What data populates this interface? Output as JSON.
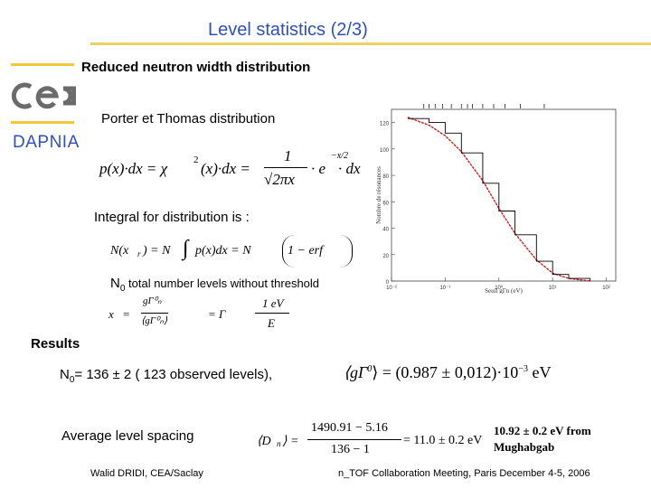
{
  "title": "Level statistics (2/3)",
  "logo": {
    "org": "DAPNIA",
    "brand": "cea",
    "accent": "#f2c83a",
    "title_color": "#2f4fbf"
  },
  "sections": {
    "reduced": "Reduced neutron width distribution",
    "porter": "Porter et Thomas distribution",
    "integral": "Integral for distribution is :",
    "n0_symbol": "N",
    "n0_sub": "0",
    "n0_text": "  total number levels without threshold",
    "results": "Results"
  },
  "formulas": {
    "porter_lhs": "p(x)·dx = χ",
    "porter_mid": "(x)·dx =",
    "porter_num": "1",
    "porter_den": "√2πx",
    "porter_tail": "· e",
    "porter_dx": "· dx",
    "integral_lhs": "N(x",
    "integral_mid": ") = N",
    "integral_text": "p(x)dx = N",
    "integral_erf": "1 − erf",
    "xr_lhs": "x",
    "xr_eq": "=",
    "gamma_eq": "= Γ",
    "sqrt_ev": "1 eV",
    "e_sym": "E",
    "avg_width": "⟨gΓ",
    "avg_width_val": "⟩ = (0.987 ± 0,012)·10",
    "avg_width_unit": " eV",
    "spacing_lhs": "⟨D",
    "spacing_num": "1490.91 − 5.16",
    "spacing_den": "136 − 1",
    "spacing_res": "= 11.0 ± 0.2 eV"
  },
  "results": {
    "n0_label": "N",
    "n0_sub": "0",
    "n0_value": "= 136 ± 2 ( 123 observed levels),",
    "avg_spacing_label": "Average level spacing",
    "comparison": "10.92 ± 0.2 eV from Mughabgab"
  },
  "footer": {
    "author": "Walid DRIDI, CEA/Saclay",
    "meeting": "n_TOF Collaboration Meeting, Paris December 4-5, 2006"
  },
  "chart_data": {
    "type": "line",
    "ylabel": "Nombre de résonances",
    "xlabel": "Seuil gΓn (eV)",
    "xscale": "log",
    "yticks": [
      "120",
      "100",
      "80",
      "60",
      "40",
      "20",
      "0"
    ],
    "xticks": [
      "10⁻²",
      "10⁻¹",
      "10⁰",
      "10¹",
      "10²"
    ],
    "series": [
      {
        "kind": "fit",
        "x": [
          0.02,
          0.05,
          0.1,
          0.2,
          0.5,
          1,
          2,
          5,
          10,
          20,
          50
        ],
        "y": [
          124,
          118,
          110,
          98,
          76,
          55,
          36,
          16,
          6,
          2,
          0
        ]
      },
      {
        "kind": "data",
        "x": [
          0.02,
          0.05,
          0.1,
          0.2,
          0.5,
          1,
          2,
          5,
          10,
          20,
          50
        ],
        "y": [
          123,
          120,
          112,
          97,
          74,
          53,
          35,
          15,
          5,
          2,
          0
        ]
      }
    ],
    "ylim": [
      0,
      130
    ],
    "xlim": [
      0.01,
      150
    ]
  }
}
